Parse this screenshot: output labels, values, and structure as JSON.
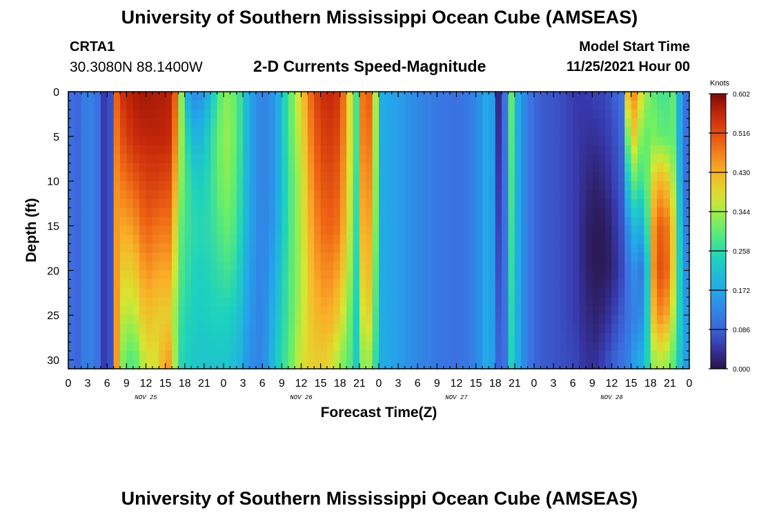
{
  "page": {
    "title": "University of Southern Mississippi Ocean Cube (AMSEAS)",
    "footer_title": "University of Southern Mississippi Ocean Cube (AMSEAS)",
    "station_id": "CRTA1",
    "location": "30.3080N  88.1400W",
    "chart_title": "2-D Currents Speed-Magnitude",
    "model_start_label": "Model Start Time",
    "model_start_value": "11/25/2021 Hour 00"
  },
  "chart_data": {
    "type": "heatmap",
    "title": "2-D Currents Speed-Magnitude",
    "xlabel": "Forecast Time(Z)",
    "ylabel": "Depth (ft)",
    "x_unit": "hours since 11/25/2021 00Z",
    "xlim": [
      0,
      96
    ],
    "ylim": [
      0,
      31
    ],
    "y_inverted": true,
    "x_ticks": [
      0,
      3,
      6,
      9,
      12,
      15,
      18,
      21,
      24,
      27,
      30,
      33,
      36,
      39,
      42,
      45,
      48,
      51,
      54,
      57,
      60,
      63,
      66,
      69,
      72,
      75,
      78,
      81,
      84,
      87,
      90,
      93,
      96
    ],
    "x_tick_labels": [
      "0",
      "3",
      "6",
      "9",
      "12",
      "15",
      "18",
      "21",
      "0",
      "3",
      "6",
      "9",
      "12",
      "15",
      "18",
      "21",
      "0",
      "3",
      "6",
      "9",
      "12",
      "15",
      "18",
      "21",
      "0",
      "3",
      "6",
      "9",
      "12",
      "15",
      "18",
      "21",
      "0"
    ],
    "y_ticks": [
      0,
      5,
      10,
      15,
      20,
      25,
      30
    ],
    "y_tick_labels": [
      "0",
      "5",
      "10",
      "15",
      "20",
      "25",
      "30"
    ],
    "date_labels": [
      {
        "label": "NOV 25",
        "hour": 12
      },
      {
        "label": "NOV 26",
        "hour": 36
      },
      {
        "label": "NOV 27",
        "hour": 60
      },
      {
        "label": "NOV 28",
        "hour": 84
      }
    ],
    "colorbar": {
      "unit": "Knots",
      "min": 0.0,
      "max": 0.602,
      "tick_labels": [
        "0.602",
        "0.516",
        "0.430",
        "0.344",
        "0.258",
        "0.172",
        "0.086",
        "0.000"
      ],
      "tick_values": [
        0.602,
        0.516,
        0.43,
        0.344,
        0.258,
        0.172,
        0.086,
        0.0
      ]
    },
    "depth_levels_ft": [
      0,
      5,
      10,
      15,
      20,
      25,
      30
    ],
    "time_knots_hours": [
      0,
      1.5,
      3,
      4.5,
      5.2,
      6,
      6.8,
      7.5,
      8.5,
      10,
      12,
      14,
      15,
      16,
      17,
      18,
      19,
      20,
      21,
      22,
      23,
      24,
      25,
      26.5,
      28,
      30,
      32,
      34,
      36,
      38,
      40,
      42,
      43.5,
      44.5,
      45.5,
      46.5,
      47.5,
      48.5,
      51,
      54,
      57,
      60,
      62,
      63.5,
      65,
      65.8,
      66.5,
      67.5,
      68.5,
      69.5,
      71,
      73,
      76,
      78.5,
      80,
      81.5,
      83,
      84,
      85.5,
      86.5,
      87.5,
      89,
      90.5,
      92,
      93.5,
      95,
      96
    ],
    "speed_knots": [
      [
        0.1,
        0.1,
        0.1,
        0.1,
        0.1,
        0.1,
        0.1
      ],
      [
        0.09,
        0.09,
        0.09,
        0.09,
        0.09,
        0.09,
        0.09
      ],
      [
        0.13,
        0.13,
        0.13,
        0.13,
        0.13,
        0.13,
        0.13
      ],
      [
        0.1,
        0.1,
        0.1,
        0.1,
        0.1,
        0.1,
        0.1
      ],
      [
        0.07,
        0.07,
        0.07,
        0.07,
        0.07,
        0.07,
        0.07
      ],
      [
        0.02,
        0.02,
        0.02,
        0.02,
        0.02,
        0.02,
        0.02
      ],
      [
        0.1,
        0.1,
        0.1,
        0.1,
        0.1,
        0.1,
        0.1
      ],
      [
        0.5,
        0.48,
        0.46,
        0.45,
        0.45,
        0.45,
        0.45
      ],
      [
        0.55,
        0.52,
        0.48,
        0.44,
        0.4,
        0.36,
        0.32
      ],
      [
        0.57,
        0.55,
        0.5,
        0.45,
        0.4,
        0.35,
        0.28
      ],
      [
        0.58,
        0.56,
        0.53,
        0.5,
        0.46,
        0.42,
        0.38
      ],
      [
        0.57,
        0.56,
        0.53,
        0.48,
        0.44,
        0.4,
        0.38
      ],
      [
        0.57,
        0.56,
        0.52,
        0.48,
        0.44,
        0.4,
        0.46
      ],
      [
        0.56,
        0.55,
        0.52,
        0.48,
        0.44,
        0.4,
        0.43
      ],
      [
        0.45,
        0.4,
        0.36,
        0.32,
        0.3,
        0.28,
        0.26
      ],
      [
        0.2,
        0.27,
        0.29,
        0.28,
        0.27,
        0.25,
        0.24
      ],
      [
        0.14,
        0.21,
        0.25,
        0.26,
        0.25,
        0.24,
        0.23
      ],
      [
        0.13,
        0.18,
        0.23,
        0.25,
        0.24,
        0.23,
        0.22
      ],
      [
        0.16,
        0.21,
        0.24,
        0.25,
        0.24,
        0.23,
        0.22
      ],
      [
        0.2,
        0.25,
        0.26,
        0.26,
        0.25,
        0.24,
        0.22
      ],
      [
        0.28,
        0.3,
        0.3,
        0.28,
        0.26,
        0.24,
        0.22
      ],
      [
        0.32,
        0.33,
        0.32,
        0.3,
        0.27,
        0.24,
        0.22
      ],
      [
        0.33,
        0.34,
        0.33,
        0.31,
        0.28,
        0.24,
        0.22
      ],
      [
        0.27,
        0.27,
        0.26,
        0.25,
        0.23,
        0.21,
        0.19
      ],
      [
        0.17,
        0.17,
        0.17,
        0.17,
        0.16,
        0.15,
        0.14
      ],
      [
        0.12,
        0.12,
        0.12,
        0.12,
        0.12,
        0.12,
        0.12
      ],
      [
        0.15,
        0.15,
        0.15,
        0.16,
        0.18,
        0.2,
        0.22
      ],
      [
        0.28,
        0.28,
        0.27,
        0.27,
        0.28,
        0.28,
        0.29
      ],
      [
        0.4,
        0.38,
        0.36,
        0.36,
        0.35,
        0.36,
        0.38
      ],
      [
        0.52,
        0.5,
        0.48,
        0.46,
        0.44,
        0.42,
        0.4
      ],
      [
        0.56,
        0.54,
        0.52,
        0.5,
        0.47,
        0.44,
        0.4
      ],
      [
        0.54,
        0.52,
        0.5,
        0.48,
        0.44,
        0.4,
        0.34
      ],
      [
        0.38,
        0.38,
        0.37,
        0.36,
        0.34,
        0.31,
        0.29
      ],
      [
        0.28,
        0.28,
        0.27,
        0.26,
        0.25,
        0.24,
        0.23
      ],
      [
        0.48,
        0.47,
        0.45,
        0.43,
        0.4,
        0.37,
        0.33
      ],
      [
        0.5,
        0.48,
        0.46,
        0.44,
        0.42,
        0.39,
        0.34
      ],
      [
        0.35,
        0.34,
        0.33,
        0.32,
        0.3,
        0.28,
        0.26
      ],
      [
        0.18,
        0.18,
        0.18,
        0.18,
        0.18,
        0.18,
        0.18
      ],
      [
        0.16,
        0.16,
        0.16,
        0.16,
        0.16,
        0.16,
        0.16
      ],
      [
        0.13,
        0.13,
        0.13,
        0.13,
        0.13,
        0.13,
        0.13
      ],
      [
        0.11,
        0.11,
        0.11,
        0.11,
        0.11,
        0.11,
        0.11
      ],
      [
        0.1,
        0.1,
        0.1,
        0.1,
        0.1,
        0.1,
        0.1
      ],
      [
        0.11,
        0.11,
        0.11,
        0.11,
        0.11,
        0.11,
        0.11
      ],
      [
        0.14,
        0.14,
        0.14,
        0.14,
        0.14,
        0.14,
        0.14
      ],
      [
        0.19,
        0.19,
        0.19,
        0.19,
        0.19,
        0.19,
        0.19
      ],
      [
        0.14,
        0.14,
        0.14,
        0.14,
        0.14,
        0.14,
        0.14
      ],
      [
        0.03,
        0.04,
        0.05,
        0.06,
        0.07,
        0.08,
        0.09
      ],
      [
        0.1,
        0.1,
        0.1,
        0.1,
        0.1,
        0.1,
        0.1
      ],
      [
        0.3,
        0.29,
        0.28,
        0.27,
        0.26,
        0.25,
        0.24
      ],
      [
        0.18,
        0.18,
        0.18,
        0.18,
        0.18,
        0.18,
        0.18
      ],
      [
        0.11,
        0.11,
        0.11,
        0.11,
        0.11,
        0.11,
        0.11
      ],
      [
        0.08,
        0.08,
        0.08,
        0.08,
        0.08,
        0.08,
        0.08
      ],
      [
        0.07,
        0.07,
        0.07,
        0.07,
        0.07,
        0.07,
        0.07
      ],
      [
        0.05,
        0.05,
        0.05,
        0.05,
        0.05,
        0.05,
        0.06
      ],
      [
        0.05,
        0.04,
        0.03,
        0.02,
        0.02,
        0.03,
        0.04
      ],
      [
        0.06,
        0.04,
        0.02,
        0.01,
        0.01,
        0.02,
        0.04
      ],
      [
        0.06,
        0.05,
        0.03,
        0.01,
        0.01,
        0.03,
        0.06
      ],
      [
        0.08,
        0.06,
        0.05,
        0.03,
        0.02,
        0.05,
        0.08
      ],
      [
        0.1,
        0.09,
        0.08,
        0.07,
        0.06,
        0.08,
        0.1
      ],
      [
        0.42,
        0.32,
        0.22,
        0.14,
        0.1,
        0.1,
        0.12
      ],
      [
        0.46,
        0.4,
        0.3,
        0.2,
        0.14,
        0.12,
        0.16
      ],
      [
        0.35,
        0.3,
        0.26,
        0.18,
        0.1,
        0.14,
        0.19
      ],
      [
        0.3,
        0.32,
        0.4,
        0.45,
        0.46,
        0.42,
        0.34
      ],
      [
        0.27,
        0.3,
        0.44,
        0.52,
        0.54,
        0.48,
        0.36
      ],
      [
        0.3,
        0.3,
        0.35,
        0.4,
        0.4,
        0.36,
        0.3
      ],
      [
        0.12,
        0.12,
        0.12,
        0.14,
        0.16,
        0.18,
        0.18
      ],
      [
        0.08,
        0.08,
        0.08,
        0.1,
        0.12,
        0.14,
        0.14
      ]
    ]
  }
}
